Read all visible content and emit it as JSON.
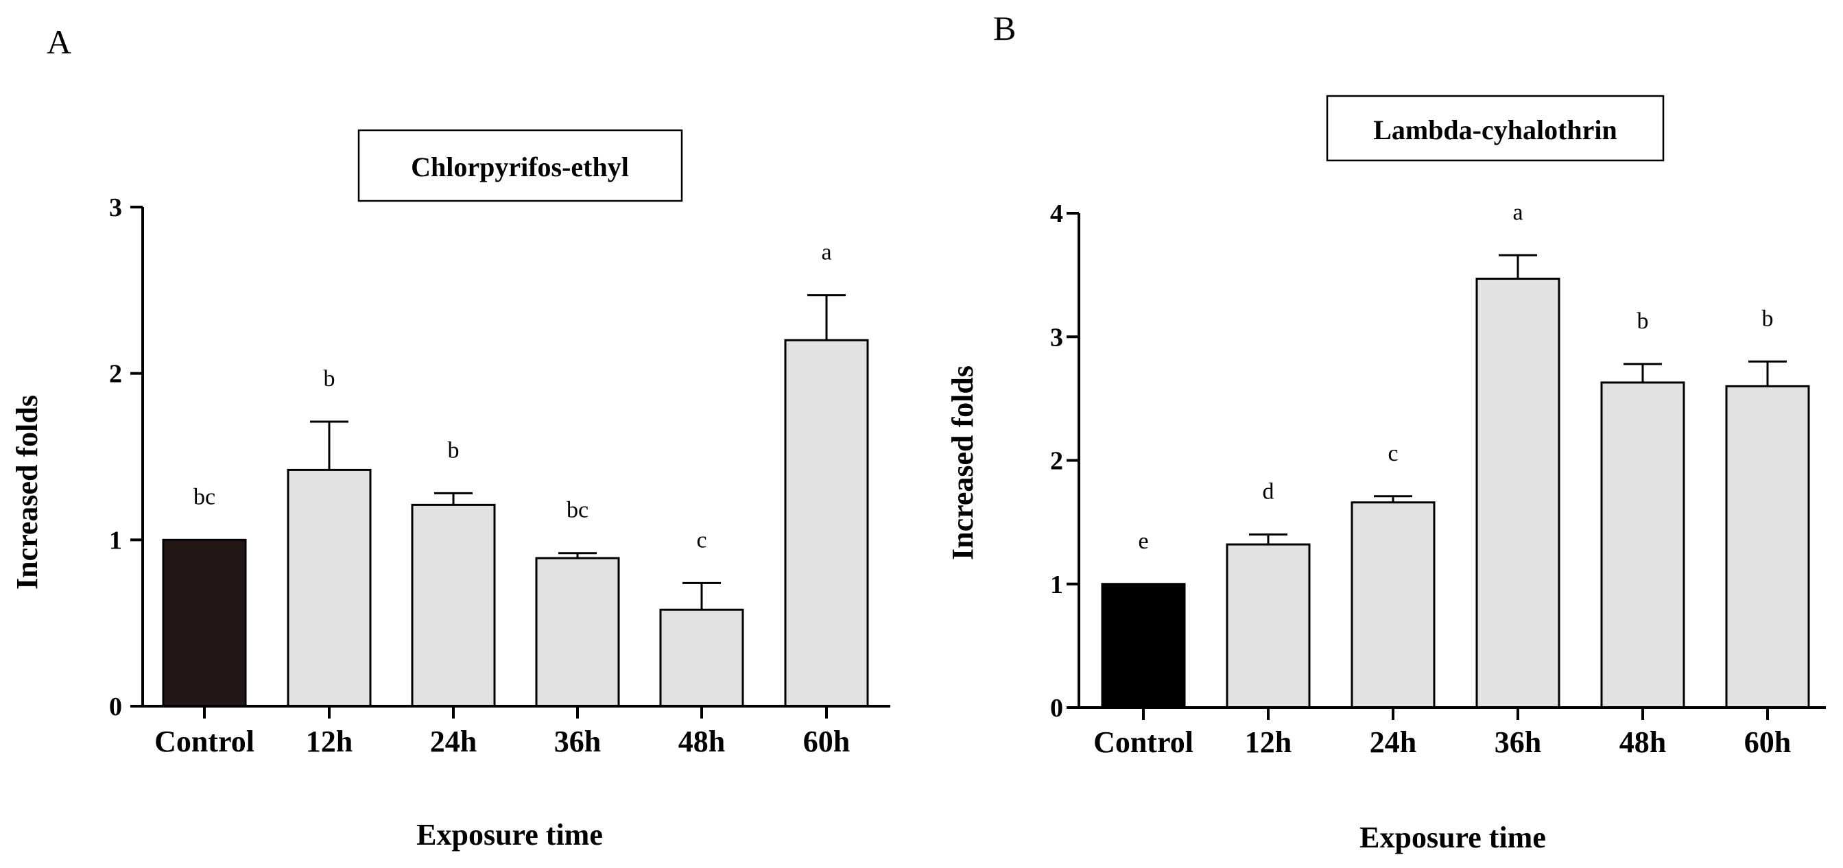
{
  "figure_labels": [
    "A",
    "B"
  ],
  "chart_data": [
    {
      "type": "bar",
      "panel": "A",
      "title": "Chlorpyrifos-ethyl",
      "xlabel": "Exposure time",
      "ylabel": "Increased folds",
      "categories": [
        "Control",
        "12h",
        "24h",
        "36h",
        "48h",
        "60h"
      ],
      "values": [
        1.0,
        1.42,
        1.21,
        0.89,
        0.58,
        2.2
      ],
      "errors": [
        0,
        0.29,
        0.07,
        0.03,
        0.16,
        0.27
      ],
      "significance": [
        "bc",
        "b",
        "b",
        "bc",
        "c",
        "a"
      ],
      "bar_colors": [
        "#231815",
        "#e1e2e2",
        "#e1e2e2",
        "#e1e2e2",
        "#e1e2e2",
        "#e1e2e2"
      ],
      "ylim": [
        0,
        3
      ],
      "yticks": [
        "0",
        "1",
        "2",
        "3"
      ],
      "grid": false
    },
    {
      "type": "bar",
      "panel": "B",
      "title": "Lambda-cyhalothrin",
      "xlabel": "Exposure time",
      "ylabel": "Increased folds",
      "categories": [
        "Control",
        "12h",
        "24h",
        "36h",
        "48h",
        "60h"
      ],
      "values": [
        1.0,
        1.32,
        1.66,
        3.47,
        2.63,
        2.6
      ],
      "errors": [
        0,
        0.08,
        0.05,
        0.19,
        0.15,
        0.2
      ],
      "significance": [
        "e",
        "d",
        "c",
        "a",
        "b",
        "b"
      ],
      "bar_colors": [
        "#000000",
        "#e1e2e2",
        "#e1e2e2",
        "#e1e2e2",
        "#e1e2e2",
        "#e1e2e2"
      ],
      "ylim": [
        0,
        4
      ],
      "yticks": [
        "0",
        "1",
        "2",
        "3",
        "4"
      ],
      "grid": false
    }
  ]
}
